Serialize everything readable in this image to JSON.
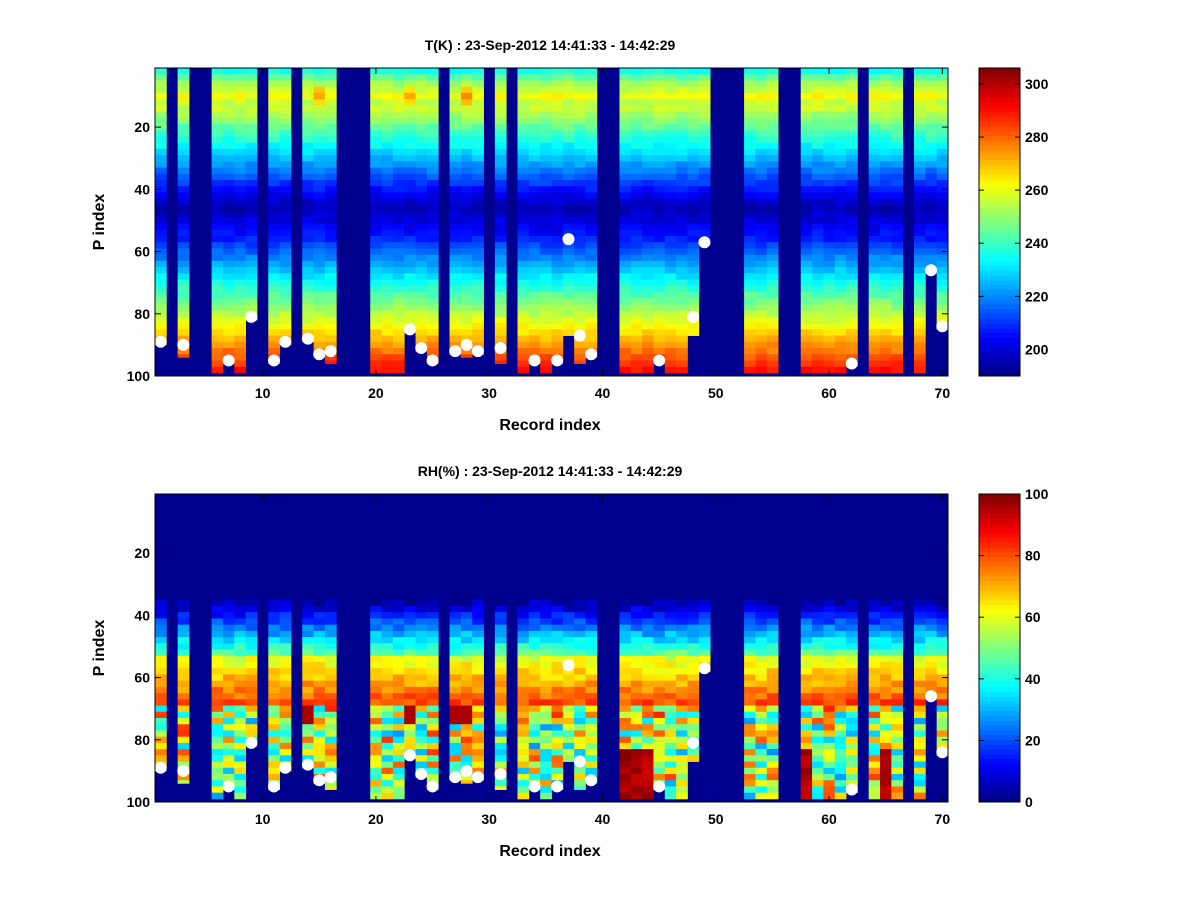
{
  "chart_data": [
    {
      "type": "heatmap",
      "title": "T(K) : 23-Sep-2012 14:41:33 - 14:42:29",
      "xlabel": "Record index",
      "ylabel": "P index",
      "xlim": [
        0.5,
        70.5
      ],
      "ylim": [
        1,
        100
      ],
      "y_reversed": true,
      "xticks": [
        10,
        20,
        30,
        40,
        50,
        60,
        70
      ],
      "yticks": [
        20,
        40,
        60,
        80,
        100
      ],
      "colorbar": {
        "range": [
          190,
          306
        ],
        "ticks": [
          200,
          220,
          240,
          260,
          280,
          300
        ],
        "colormap": "jet"
      },
      "profile": "temperature",
      "mask_color": "#00008f",
      "marker_color": "#ffffff"
    },
    {
      "type": "heatmap",
      "title": "RH(%) : 23-Sep-2012 14:41:33 - 14:42:29",
      "xlabel": "Record index",
      "ylabel": "P index",
      "xlim": [
        0.5,
        70.5
      ],
      "ylim": [
        1,
        100
      ],
      "y_reversed": true,
      "xticks": [
        10,
        20,
        30,
        40,
        50,
        60,
        70
      ],
      "yticks": [
        20,
        40,
        60,
        80,
        100
      ],
      "colorbar": {
        "range": [
          0,
          100
        ],
        "ticks": [
          0,
          20,
          40,
          60,
          80,
          100
        ],
        "colormap": "jet"
      },
      "profile": "humidity",
      "mask_color": "#00008f",
      "marker_color": "#ffffff"
    }
  ],
  "records": {
    "masked": [
      2,
      4,
      5,
      10,
      13,
      17,
      18,
      19,
      26,
      30,
      32,
      40,
      41,
      50,
      51,
      52,
      56,
      57,
      63,
      67
    ],
    "bottom_p": {
      "1": 89,
      "3": 93,
      "6": 98,
      "7": 95,
      "8": 98,
      "9": 81,
      "11": 95,
      "12": 89,
      "14": 88,
      "15": 93,
      "16": 95,
      "20": 98,
      "21": 98,
      "22": 98,
      "23": 85,
      "24": 91,
      "25": 95,
      "27": 92,
      "28": 93,
      "29": 92,
      "31": 95,
      "33": 98,
      "34": 95,
      "35": 98,
      "36": 95,
      "37": 86,
      "38": 95,
      "39": 93,
      "42": 98,
      "43": 98,
      "44": 98,
      "45": 95,
      "46": 98,
      "47": 98,
      "48": 86,
      "49": 57,
      "53": 98,
      "54": 98,
      "55": 98,
      "58": 98,
      "59": 98,
      "60": 98,
      "61": 98,
      "62": 96,
      "64": 98,
      "65": 98,
      "66": 98,
      "68": 98,
      "69": 66,
      "70": 84
    },
    "markers": [
      [
        1,
        89
      ],
      [
        3,
        90
      ],
      [
        7,
        95
      ],
      [
        9,
        81
      ],
      [
        11,
        95
      ],
      [
        12,
        89
      ],
      [
        14,
        88
      ],
      [
        15,
        93
      ],
      [
        16,
        92
      ],
      [
        23,
        85
      ],
      [
        24,
        91
      ],
      [
        25,
        95
      ],
      [
        27,
        92
      ],
      [
        28,
        90
      ],
      [
        29,
        92
      ],
      [
        31,
        91
      ],
      [
        34,
        95
      ],
      [
        36,
        95
      ],
      [
        37,
        56
      ],
      [
        38,
        87
      ],
      [
        39,
        93
      ],
      [
        45,
        95
      ],
      [
        48,
        81
      ],
      [
        49,
        57
      ],
      [
        62,
        96
      ],
      [
        69,
        66
      ],
      [
        70,
        84
      ]
    ],
    "rh_top_p": 35
  }
}
